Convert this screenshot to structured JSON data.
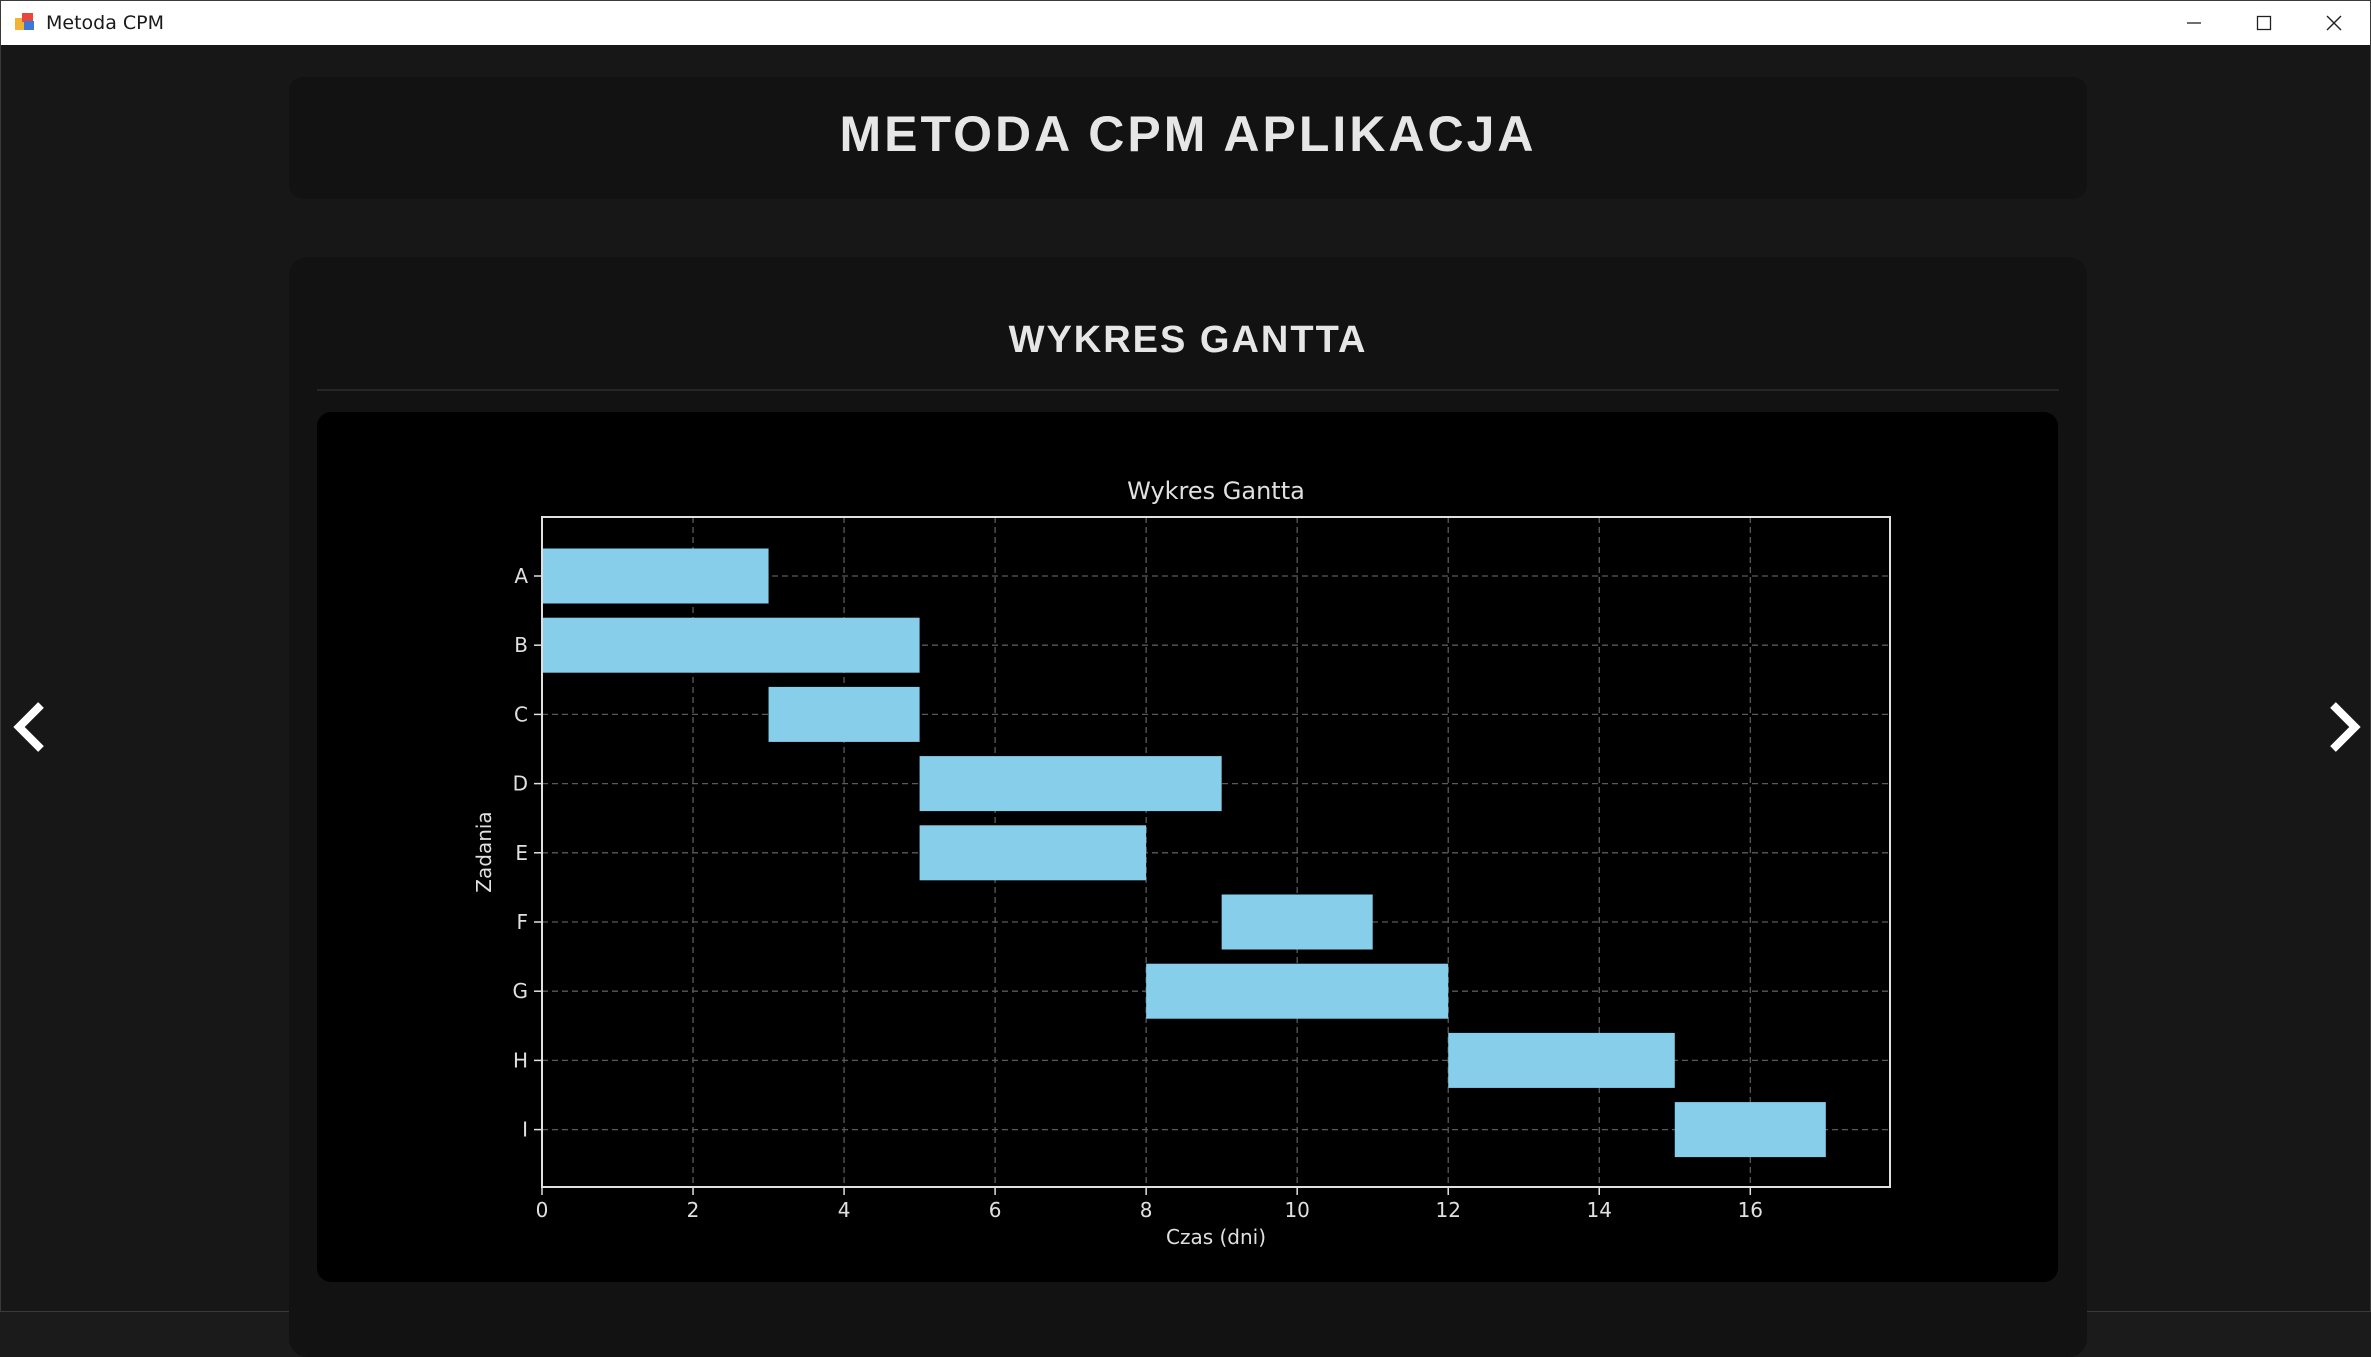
{
  "window": {
    "title": "Metoda CPM",
    "icon": "app-icon",
    "controls": [
      "minimize-icon",
      "maximize-icon",
      "close-icon"
    ]
  },
  "header": {
    "title": "METODA CPM APLIKACJA"
  },
  "section": {
    "title": "WYKRES GANTTA"
  },
  "navigation": {
    "prev_icon": "chevron-left-icon",
    "next_icon": "chevron-right-icon"
  },
  "colors": {
    "background": "#171717",
    "card": "#121212",
    "chart_background": "#000000",
    "bar": "#87ceeb",
    "text": "#e6e6e6"
  },
  "chart_data": {
    "type": "bar",
    "orientation": "horizontal",
    "title": "Wykres Gantta",
    "xlabel": "Czas (dni)",
    "ylabel": "Zadania",
    "xlim": [
      0,
      17.85
    ],
    "xticks": [
      0,
      2,
      4,
      6,
      8,
      10,
      12,
      14,
      16
    ],
    "grid": true,
    "tasks": [
      {
        "name": "A",
        "start": 0,
        "duration": 3
      },
      {
        "name": "B",
        "start": 0,
        "duration": 5
      },
      {
        "name": "C",
        "start": 3,
        "duration": 2
      },
      {
        "name": "D",
        "start": 5,
        "duration": 4
      },
      {
        "name": "E",
        "start": 5,
        "duration": 3
      },
      {
        "name": "F",
        "start": 9,
        "duration": 2
      },
      {
        "name": "G",
        "start": 8,
        "duration": 4
      },
      {
        "name": "H",
        "start": 12,
        "duration": 3
      },
      {
        "name": "I",
        "start": 15,
        "duration": 2
      }
    ]
  }
}
